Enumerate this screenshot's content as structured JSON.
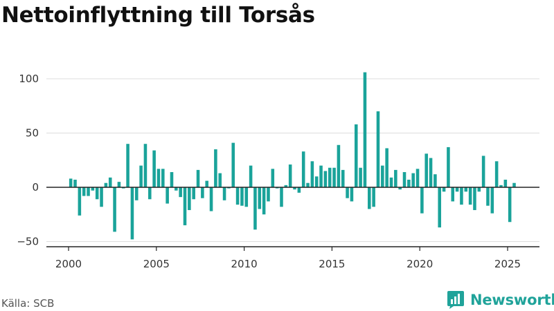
{
  "title": "Nettoinflyttning till Torsås",
  "source": "Källa: SCB",
  "brand": {
    "name": "Newsworthy",
    "icon": "bar-chart-logo-icon"
  },
  "colors": {
    "bar": "#1aa39a",
    "axis": "#222222",
    "grid": "#dddddd",
    "brand": "#20a39a"
  },
  "chart_data": {
    "type": "bar",
    "title": "Nettoinflyttning till Torsås",
    "xlabel": "",
    "ylabel": "",
    "x_ticks": [
      "2000",
      "2005",
      "2010",
      "2015",
      "2020",
      "2025"
    ],
    "y_ticks": [
      "−50",
      "0",
      "50",
      "100"
    ],
    "ylim": [
      -55,
      110
    ],
    "xlim": [
      1999.3,
      2026.8
    ],
    "grid": true,
    "x": [
      2000.125,
      2000.375,
      2000.625,
      2000.875,
      2001.125,
      2001.375,
      2001.625,
      2001.875,
      2002.125,
      2002.375,
      2002.625,
      2002.875,
      2003.125,
      2003.375,
      2003.625,
      2003.875,
      2004.125,
      2004.375,
      2004.625,
      2004.875,
      2005.125,
      2005.375,
      2005.625,
      2005.875,
      2006.125,
      2006.375,
      2006.625,
      2006.875,
      2007.125,
      2007.375,
      2007.625,
      2007.875,
      2008.125,
      2008.375,
      2008.625,
      2008.875,
      2009.125,
      2009.375,
      2009.625,
      2009.875,
      2010.125,
      2010.375,
      2010.625,
      2010.875,
      2011.125,
      2011.375,
      2011.625,
      2011.875,
      2012.125,
      2012.375,
      2012.625,
      2012.875,
      2013.125,
      2013.375,
      2013.625,
      2013.875,
      2014.125,
      2014.375,
      2014.625,
      2014.875,
      2015.125,
      2015.375,
      2015.625,
      2015.875,
      2016.125,
      2016.375,
      2016.625,
      2016.875,
      2017.125,
      2017.375,
      2017.625,
      2017.875,
      2018.125,
      2018.375,
      2018.625,
      2018.875,
      2019.125,
      2019.375,
      2019.625,
      2019.875,
      2020.125,
      2020.375,
      2020.625,
      2020.875,
      2021.125,
      2021.375,
      2021.625,
      2021.875,
      2022.125,
      2022.375,
      2022.625,
      2022.875,
      2023.125,
      2023.375,
      2023.625,
      2023.875,
      2024.125,
      2024.375,
      2024.625,
      2024.875,
      2025.125,
      2025.375
    ],
    "values": [
      8,
      7,
      -26,
      -8,
      -8,
      -3,
      -11,
      -18,
      4,
      9,
      -41,
      5,
      -1,
      40,
      -48,
      -12,
      20,
      40,
      -11,
      34,
      17,
      17,
      -15,
      14,
      -3,
      -9,
      -35,
      -21,
      -11,
      16,
      -10,
      6,
      -22,
      35,
      13,
      -12,
      -1,
      41,
      -16,
      -17,
      -18,
      20,
      -39,
      -20,
      -25,
      -13,
      17,
      -1,
      -18,
      2,
      21,
      -2,
      -5,
      33,
      4,
      24,
      10,
      20,
      15,
      18,
      18,
      39,
      16,
      -10,
      -13,
      58,
      18,
      106,
      -20,
      -18,
      70,
      20,
      36,
      9,
      16,
      -2,
      14,
      7,
      13,
      17,
      -24,
      31,
      27,
      12,
      -37,
      -4,
      37,
      -13,
      -4,
      -16,
      -4,
      -16,
      -21,
      -4,
      29,
      -17,
      -24,
      24,
      2,
      7,
      -32,
      4
    ]
  }
}
